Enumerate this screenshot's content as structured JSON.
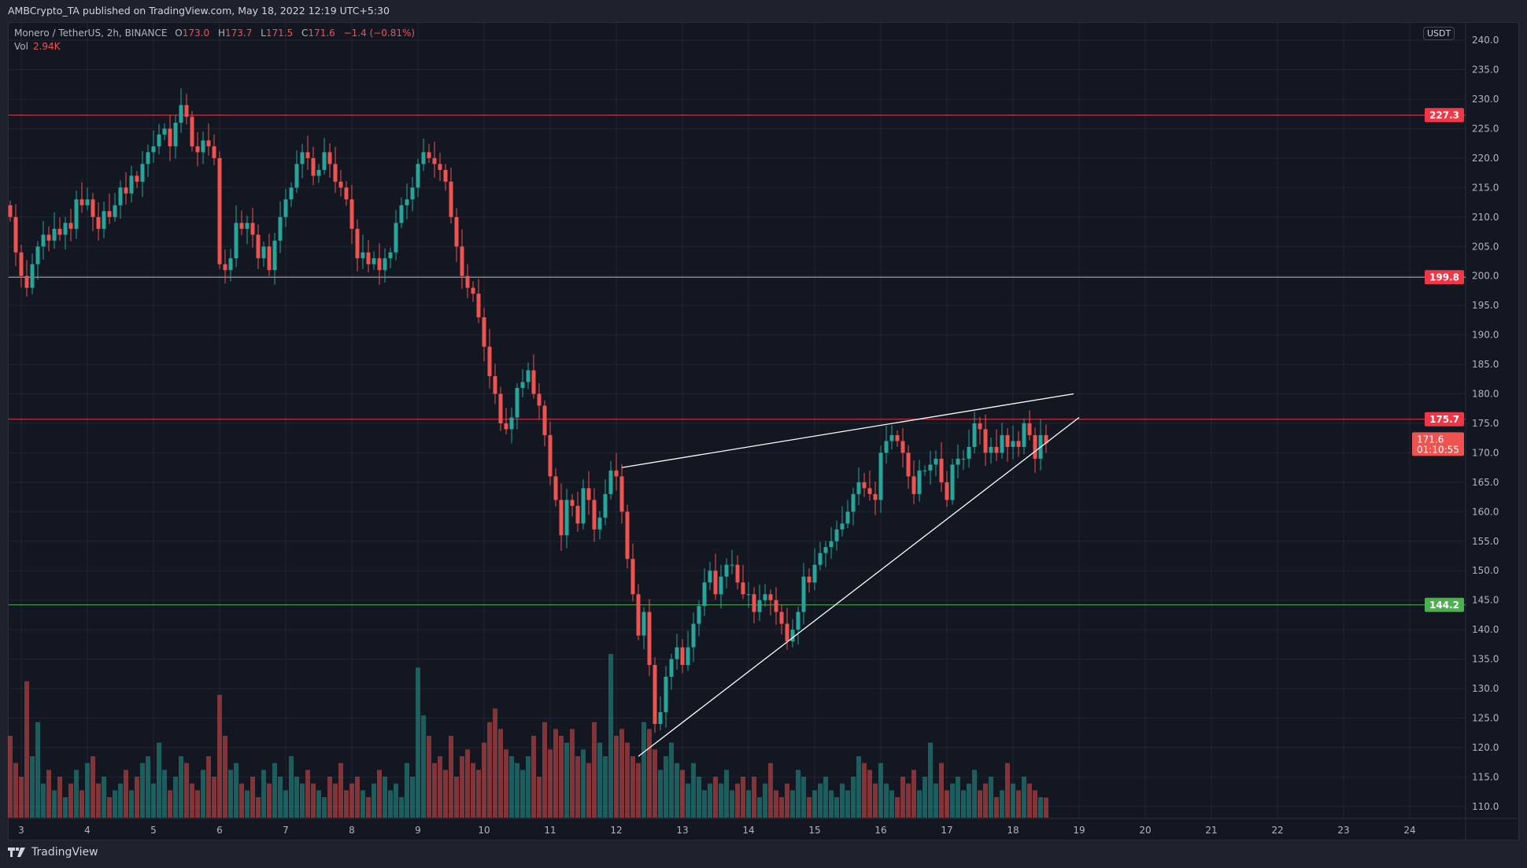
{
  "header": {
    "publish_line": "AMBCrypto_TA published on TradingView.com, May 18, 2022 12:19 UTC+5:30"
  },
  "legend": {
    "symbol": "Monero / TetherUS, 2h, BINANCE",
    "open_label": "O",
    "open": "173.0",
    "high_label": "H",
    "high": "173.7",
    "low_label": "L",
    "low": "171.5",
    "close_label": "C",
    "close": "171.6",
    "change": "−1.4 (−0.81%)",
    "vol_label": "Vol",
    "vol": "2.94K"
  },
  "price_axis": {
    "currency": "USDT",
    "last_price": "171.6",
    "countdown": "01:10:55"
  },
  "footer": {
    "brand": "TradingView"
  },
  "colors": {
    "up": "#26a69a",
    "down": "#ef5350",
    "background": "#131722",
    "grid": "#222631",
    "support": "#4caf50",
    "resistance": "#f23645"
  },
  "chart_data": {
    "type": "candlestick",
    "interval": "2h",
    "first_bar": "2022-05-02 20:00",
    "closes": [
      210,
      204,
      200,
      198,
      202,
      205,
      207,
      206,
      208,
      207,
      209,
      208,
      213,
      212,
      213,
      210,
      208,
      211,
      210,
      212,
      215,
      214,
      217,
      216,
      219,
      221,
      222,
      224,
      225,
      222,
      226,
      229,
      227,
      222,
      221,
      223,
      222,
      220,
      202,
      201,
      203,
      209,
      208,
      209,
      207,
      203,
      205,
      201,
      206,
      210,
      213,
      215,
      219,
      221,
      220,
      217,
      218,
      221,
      219,
      216,
      215,
      213,
      208,
      203,
      204,
      202,
      203,
      201,
      203,
      204,
      209,
      212,
      213,
      215,
      219,
      221,
      220,
      219,
      218,
      216,
      210,
      205,
      200,
      198,
      197,
      193,
      188,
      183,
      180,
      175,
      174,
      176,
      181,
      182,
      184,
      180,
      178,
      173,
      166,
      162,
      156,
      162,
      161,
      158,
      164,
      162,
      157,
      159,
      163,
      167,
      166,
      160,
      152,
      146,
      139,
      143,
      134,
      124,
      126,
      132,
      135,
      137,
      134,
      137,
      141,
      144,
      148,
      150,
      146,
      149,
      151,
      151,
      148,
      146,
      146,
      143,
      145,
      146,
      145,
      143,
      141,
      138,
      140,
      143,
      149,
      148,
      151,
      153,
      154,
      155,
      157,
      158,
      160,
      163,
      165,
      164,
      163,
      162,
      170,
      172,
      173,
      172,
      170,
      166,
      163,
      167,
      167,
      168,
      169,
      165,
      162,
      168,
      169,
      169,
      171,
      175,
      174,
      170,
      171,
      170,
      173,
      171,
      172,
      171,
      175,
      173,
      169,
      173,
      171.6
    ],
    "volumes_k": [
      12,
      8,
      6,
      20,
      9,
      14,
      5,
      7,
      4,
      6,
      3,
      5,
      7,
      4,
      8,
      9,
      5,
      6,
      3,
      4,
      5,
      7,
      4,
      6,
      8,
      9,
      5,
      11,
      7,
      4,
      6,
      9,
      8,
      5,
      4,
      7,
      9,
      6,
      18,
      12,
      7,
      8,
      5,
      4,
      6,
      3,
      7,
      5,
      8,
      6,
      4,
      9,
      6,
      5,
      7,
      5,
      4,
      3,
      6,
      5,
      8,
      4,
      5,
      6,
      4,
      3,
      5,
      7,
      6,
      4,
      5,
      3,
      8,
      6,
      22,
      15,
      12,
      8,
      9,
      7,
      12,
      6,
      9,
      10,
      8,
      7,
      11,
      14,
      16,
      13,
      10,
      9,
      8,
      7,
      9,
      12,
      6,
      14,
      10,
      13,
      12,
      11,
      13,
      9,
      10,
      8,
      14,
      11,
      9,
      24,
      12,
      13,
      11,
      9,
      8,
      14,
      13,
      10,
      7,
      9,
      11,
      8,
      7,
      5,
      8,
      6,
      4,
      5,
      6,
      5,
      7,
      4,
      5,
      6,
      4,
      6,
      3,
      5,
      8,
      4,
      3,
      5,
      4,
      7,
      6,
      3,
      4,
      5,
      6,
      4,
      3,
      5,
      4,
      6,
      9,
      8,
      7,
      5,
      8,
      5,
      4,
      3,
      6,
      5,
      7,
      4,
      6,
      11,
      5,
      8,
      4,
      5,
      6,
      4,
      5,
      7,
      4,
      5,
      6,
      3,
      4,
      8,
      5,
      4,
      6,
      5,
      4,
      3,
      2.94
    ],
    "horizontal_levels": [
      {
        "price": 227.3,
        "label": "227.3",
        "color": "#f23645"
      },
      {
        "price": 199.8,
        "label": "199.8",
        "color": "#b2b5be",
        "label_color": "#f23645"
      },
      {
        "price": 175.7,
        "label": "175.7",
        "color": "#f23645"
      },
      {
        "price": 144.2,
        "label": "144.2",
        "color": "#4caf50"
      }
    ],
    "trendlines": [
      {
        "from": [
          "2022-05-12 02:00",
          167.5
        ],
        "to": [
          "2022-05-18 22:00",
          180.0
        ],
        "color": "#ffffff"
      },
      {
        "from": [
          "2022-05-12 08:00",
          118.5
        ],
        "to": [
          "2022-05-19 00:00",
          176.0
        ],
        "color": "#ffffff"
      }
    ],
    "y_ticks": [
      "110.0",
      "115.0",
      "120.0",
      "125.0",
      "130.0",
      "135.0",
      "140.0",
      "145.0",
      "150.0",
      "155.0",
      "160.0",
      "165.0",
      "170.0",
      "175.0",
      "180.0",
      "185.0",
      "190.0",
      "195.0",
      "200.0",
      "205.0",
      "210.0",
      "215.0",
      "220.0",
      "225.0",
      "230.0",
      "235.0",
      "240.0"
    ],
    "x_ticks": [
      "3",
      "4",
      "5",
      "6",
      "7",
      "8",
      "9",
      "10",
      "11",
      "12",
      "13",
      "14",
      "15",
      "16",
      "17",
      "18",
      "19",
      "20",
      "21",
      "22",
      "23",
      "24"
    ],
    "ylim": [
      108,
      241
    ]
  }
}
